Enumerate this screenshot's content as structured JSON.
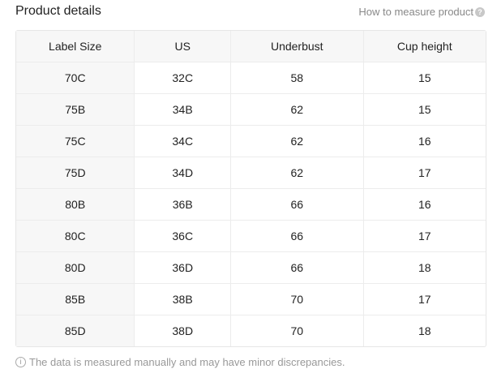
{
  "header": {
    "title": "Product details",
    "how_to_measure": "How to measure product",
    "help_icon": "question-circle-icon"
  },
  "table": {
    "columns": [
      "Label Size",
      "US",
      "Underbust",
      "Cup height"
    ],
    "rows": [
      [
        "70C",
        "32C",
        "58",
        "15"
      ],
      [
        "75B",
        "34B",
        "62",
        "15"
      ],
      [
        "75C",
        "34C",
        "62",
        "16"
      ],
      [
        "75D",
        "34D",
        "62",
        "17"
      ],
      [
        "80B",
        "36B",
        "66",
        "16"
      ],
      [
        "80C",
        "36C",
        "66",
        "17"
      ],
      [
        "80D",
        "36D",
        "66",
        "18"
      ],
      [
        "85B",
        "38B",
        "70",
        "17"
      ],
      [
        "85D",
        "38D",
        "70",
        "18"
      ]
    ]
  },
  "footer": {
    "info_icon": "info-circle-icon",
    "note": "The data is measured manually and may have minor discrepancies."
  }
}
